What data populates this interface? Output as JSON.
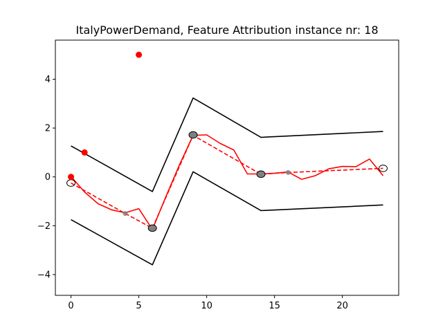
{
  "chart_data": {
    "type": "line",
    "title": "ItalyPowerDemand, Feature Attribution instance nr: 18",
    "xlabel": "",
    "ylabel": "",
    "xlim": [
      -1.15,
      24.15
    ],
    "ylim": [
      -4.85,
      5.6
    ],
    "xticks": [
      0,
      5,
      10,
      15,
      20
    ],
    "yticks": [
      -4,
      -2,
      0,
      2,
      4
    ],
    "grid": false,
    "series": [
      {
        "style": "solid",
        "color": "#000000",
        "x": [
          0,
          6,
          9,
          14,
          23
        ],
        "y": [
          1.27,
          -0.6,
          3.23,
          1.62,
          1.86
        ]
      },
      {
        "style": "solid",
        "color": "#000000",
        "x": [
          0,
          6,
          9,
          14,
          23
        ],
        "y": [
          -1.75,
          -3.6,
          0.21,
          -1.38,
          -1.15
        ]
      },
      {
        "style": "solid",
        "color": "#ff0000",
        "x": [
          0,
          1,
          2,
          3,
          4,
          5,
          6,
          7,
          8,
          9,
          10,
          11,
          12,
          13,
          14,
          15,
          16,
          17,
          18,
          19,
          20,
          21,
          22,
          23
        ],
        "y": [
          0.02,
          -0.62,
          -1.1,
          -1.35,
          -1.47,
          -1.3,
          -2.15,
          -0.8,
          0.5,
          1.7,
          1.72,
          1.37,
          1.1,
          0.12,
          0.12,
          0.15,
          0.2,
          -0.1,
          0.05,
          0.33,
          0.43,
          0.42,
          0.73,
          0.05
        ]
      },
      {
        "style": "dashed",
        "color": "#ff0000",
        "x": [
          0,
          4,
          6,
          9,
          14,
          16,
          23
        ],
        "y": [
          -0.25,
          -1.5,
          -2.1,
          1.7,
          0.11,
          0.18,
          0.35
        ]
      }
    ],
    "attribution_points": {
      "color": "#ff0000",
      "x": [
        0,
        1,
        5
      ],
      "y": [
        0.0,
        1.0,
        5.0
      ]
    },
    "open_circles": {
      "x": [
        0,
        23
      ],
      "y": [
        -0.25,
        0.35
      ]
    },
    "filled_circles": {
      "color": "#808080",
      "x": [
        6,
        9,
        14
      ],
      "y": [
        -2.1,
        1.72,
        0.11
      ]
    },
    "small_markers": {
      "color": "#808080",
      "x": [
        4,
        16
      ],
      "y": [
        -1.5,
        0.18
      ]
    }
  }
}
